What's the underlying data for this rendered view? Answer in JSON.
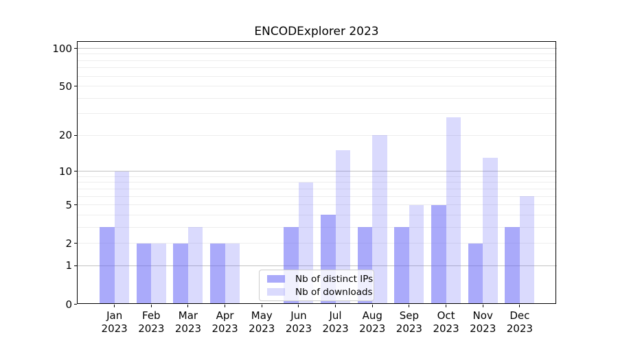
{
  "chart_data": {
    "type": "bar",
    "title": "ENCODExplorer 2023",
    "xlabel": "",
    "ylabel": "",
    "categories": [
      "Jan 2023",
      "Feb 2023",
      "Mar 2023",
      "Apr 2023",
      "May 2023",
      "Jun 2023",
      "Jul 2023",
      "Aug 2023",
      "Sep 2023",
      "Oct 2023",
      "Nov 2023",
      "Dec 2023"
    ],
    "series": [
      {
        "name": "Nb of distinct IPs",
        "color": "rgba(100,100,245,0.55)",
        "values": [
          3,
          2,
          2,
          2,
          0,
          3,
          4,
          3,
          3,
          5,
          2,
          3
        ]
      },
      {
        "name": "Nb of downloads",
        "color": "rgba(100,100,245,0.24)",
        "values": [
          10,
          2,
          3,
          2,
          0,
          8,
          15,
          20,
          5,
          28,
          13,
          6
        ]
      }
    ],
    "y_axis": {
      "scale": "log1p",
      "tick_values": [
        100,
        50,
        20,
        10,
        5,
        2,
        1,
        0
      ],
      "tick_labels": [
        "100",
        "50",
        "20",
        "10",
        "5",
        "2",
        "1",
        "0"
      ],
      "major_gridlines": [
        1,
        10,
        100
      ],
      "minor_gridlines": [
        2,
        3,
        4,
        5,
        6,
        7,
        8,
        9,
        20,
        30,
        40,
        50,
        60,
        70,
        80,
        90
      ],
      "ylim": [
        0,
        115
      ]
    },
    "legend": {
      "position": "bottom-center"
    },
    "grid": "on",
    "colors": {
      "major_grid": "#c2c2c2",
      "minor_grid": "#ededed",
      "spine": "#000000",
      "legend_border": "#cccccc",
      "background": "#ffffff",
      "text": "#000000"
    }
  }
}
